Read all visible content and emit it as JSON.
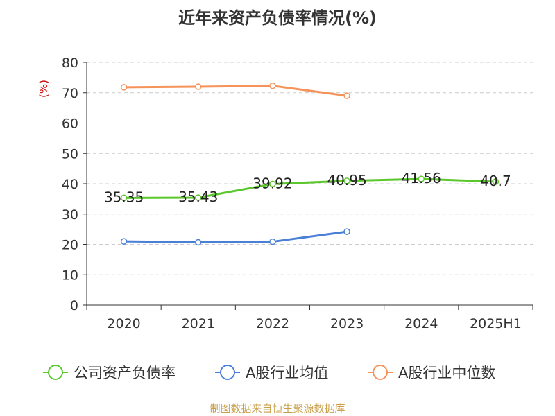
{
  "chart_data": {
    "type": "line",
    "title": "近年来资产负债率情况(%)",
    "ylabel": "(%)",
    "xlabel": "",
    "categories": [
      "2020",
      "2021",
      "2022",
      "2023",
      "2024",
      "2025H1"
    ],
    "ylim": [
      0,
      80
    ],
    "yticks": [
      0,
      10,
      20,
      30,
      40,
      50,
      60,
      70,
      80
    ],
    "grid": true,
    "legend_position": "bottom",
    "series": [
      {
        "name": "公司资产负债率",
        "color": "#5cc72c",
        "values": [
          35.35,
          35.43,
          39.92,
          40.95,
          41.56,
          40.7
        ],
        "labels": [
          "35.35",
          "35.43",
          "39.92",
          "40.95",
          "41.56",
          "40.7"
        ]
      },
      {
        "name": "A股行业均值",
        "color": "#4a7fd6",
        "values": [
          21.0,
          20.7,
          20.9,
          24.2,
          null,
          null
        ],
        "labels": []
      },
      {
        "name": "A股行业中位数",
        "color": "#f5935a",
        "values": [
          71.8,
          72.0,
          72.3,
          69.0,
          null,
          null
        ],
        "labels": []
      }
    ]
  },
  "footer": "制图数据来自恒生聚源数据库"
}
